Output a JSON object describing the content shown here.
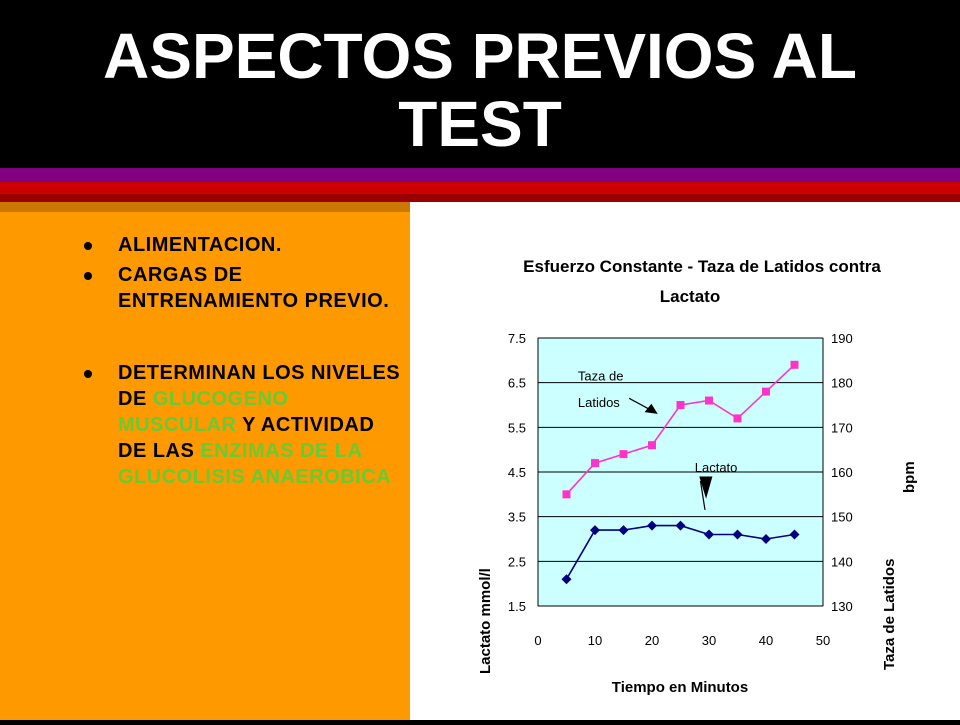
{
  "slide": {
    "title": "ASPECTOS PREVIOS AL TEST",
    "colors": {
      "background": "#000000",
      "panel": "#ff9900",
      "highlight": "#66cc33"
    },
    "bullets": [
      {
        "text": "ALIMENTACION."
      },
      {
        "text": "CARGAS DE ENTRENAMIENTO PREVIO."
      },
      {
        "parts": [
          {
            "text": "DETERMINAN LOS NIVELES DE ",
            "highlight": false
          },
          {
            "text": "GLUCOGENO MUSCULAR",
            "highlight": true
          },
          {
            "text": " Y ACTIVIDAD DE LAS ",
            "highlight": false
          },
          {
            "text": "ENZIMAS DE LA GLUCOLISIS ANAEROBICA",
            "highlight": true
          }
        ]
      }
    ]
  },
  "chart_data": {
    "type": "line",
    "title": "Esfuerzo Constante - Taza de Latidos  contra Lactato",
    "title_line1": "Esfuerzo Constante - Taza de Latidos  contra",
    "title_line2": "Lactato",
    "xlabel": "Tiempo en Minutos",
    "ylabel_left": "Lactato mmol/l",
    "ylabel_right": "Taza de Latidos bpm",
    "ylabel_right_line1": "Taza de Latidos",
    "ylabel_right_line2": "bpm",
    "xlim": [
      0,
      50
    ],
    "ylim_left": [
      1.5,
      7.5
    ],
    "ylim_right": [
      130,
      190
    ],
    "x_ticks": [
      "0",
      "10",
      "20",
      "30",
      "40",
      "50"
    ],
    "y_left_ticks": [
      "1.5",
      "2.5",
      "3.5",
      "4.5",
      "5.5",
      "6.5",
      "7.5"
    ],
    "y_right_ticks": [
      "130",
      "140",
      "150",
      "160",
      "170",
      "180",
      "190"
    ],
    "grid": true,
    "plot_background": "#ccffff",
    "series": [
      {
        "name": "Taza de Latidos",
        "axis": "right",
        "color": "#ff33cc",
        "marker": "square",
        "x": [
          5,
          10,
          15,
          20,
          25,
          30,
          35,
          40,
          45
        ],
        "y": [
          155,
          162,
          164,
          166,
          175,
          176,
          172,
          178,
          184
        ]
      },
      {
        "name": "Lactato",
        "axis": "left",
        "color": "#000080",
        "marker": "diamond",
        "x": [
          5,
          10,
          15,
          20,
          25,
          30,
          35,
          40,
          45
        ],
        "y": [
          2.1,
          3.2,
          3.2,
          3.3,
          3.3,
          3.1,
          3.1,
          3.0,
          3.1
        ]
      }
    ],
    "annotations": [
      {
        "label_line1": "Taza de",
        "label_line2": "Latidos",
        "series": "Taza de Latidos"
      },
      {
        "label_line1": "Lactato",
        "series": "Lactato"
      }
    ]
  }
}
